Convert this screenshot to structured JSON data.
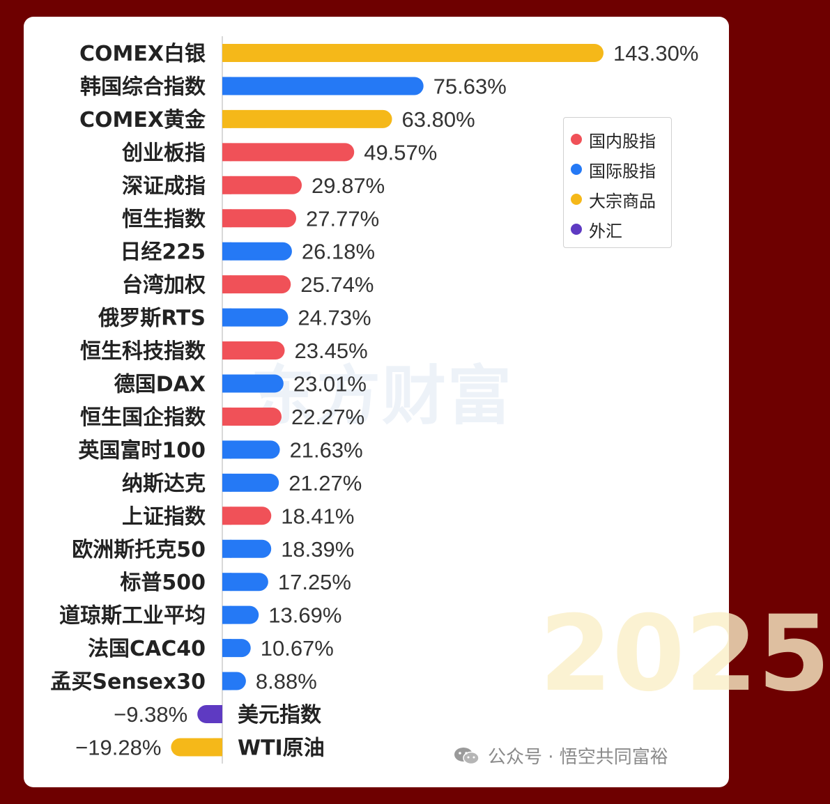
{
  "chart_data": {
    "type": "bar",
    "orientation": "horizontal",
    "value_format": "percent",
    "categories": [
      "COMEX白银",
      "韩国综合指数",
      "COMEX黄金",
      "创业板指",
      "深证成指",
      "恒生指数",
      "日经225",
      "台湾加权",
      "俄罗斯RTS",
      "恒生科技指数",
      "德国DAX",
      "恒生国企指数",
      "英国富时100",
      "纳斯达克",
      "上证指数",
      "欧洲斯托克50",
      "标普500",
      "道琼斯工业平均",
      "法国CAC40",
      "孟买Sensex30",
      "美元指数",
      "WTI原油"
    ],
    "values": [
      143.3,
      75.63,
      63.8,
      49.57,
      29.87,
      27.77,
      26.18,
      25.74,
      24.73,
      23.45,
      23.01,
      22.27,
      21.63,
      21.27,
      18.41,
      18.39,
      17.25,
      13.69,
      10.67,
      8.88,
      -9.38,
      -19.28
    ],
    "labels": [
      "143.30%",
      "75.63%",
      "63.80%",
      "49.57%",
      "29.87%",
      "27.77%",
      "26.18%",
      "25.74%",
      "24.73%",
      "23.45%",
      "23.01%",
      "22.27%",
      "21.63%",
      "21.27%",
      "18.41%",
      "18.39%",
      "17.25%",
      "13.69%",
      "10.67%",
      "8.88%",
      "−9.38%",
      "−19.28%"
    ],
    "groups": [
      "大宗商品",
      "国际股指",
      "大宗商品",
      "国内股指",
      "国内股指",
      "国内股指",
      "国际股指",
      "国内股指",
      "国际股指",
      "国内股指",
      "国际股指",
      "国内股指",
      "国际股指",
      "国际股指",
      "国内股指",
      "国际股指",
      "国际股指",
      "国际股指",
      "国际股指",
      "国际股指",
      "外汇",
      "大宗商品"
    ],
    "legend": [
      {
        "name": "国内股指",
        "color": "#f05158"
      },
      {
        "name": "国际股指",
        "color": "#2579f5"
      },
      {
        "name": "大宗商品",
        "color": "#f5b819"
      },
      {
        "name": "外汇",
        "color": "#5e3ac2"
      }
    ],
    "legend_position": "right",
    "grid": false,
    "title": "",
    "xlabel": "",
    "ylabel": ""
  },
  "watermark": "东方财富",
  "year_mark": "2025",
  "footer": {
    "text": "公众号 · 悟空共同富裕",
    "icon": "wechat-icon"
  }
}
